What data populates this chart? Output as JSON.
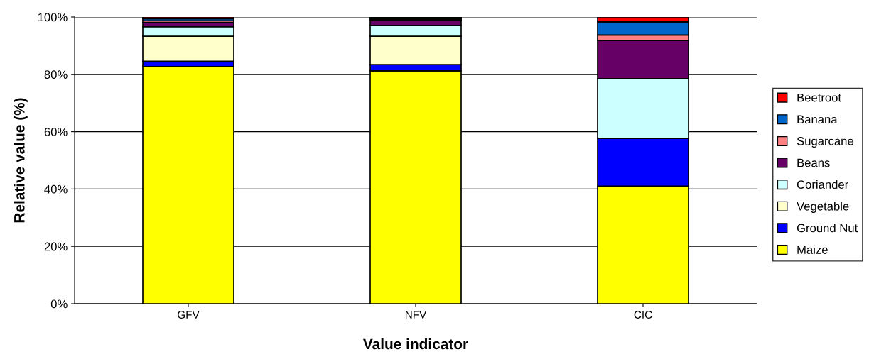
{
  "chart_data": {
    "type": "bar",
    "stacked": true,
    "xlabel": "Value indicator",
    "ylabel": "Relative value (%)",
    "categories": [
      "GFV",
      "NFV",
      "CIC"
    ],
    "series": [
      {
        "name": "Maize",
        "color": "#ffff00",
        "values": [
          82.7,
          81.2,
          41.0
        ]
      },
      {
        "name": "Ground Nut",
        "color": "#0000ff",
        "values": [
          1.9,
          2.2,
          16.7
        ]
      },
      {
        "name": "Vegetable",
        "color": "#ffffcc",
        "values": [
          8.7,
          9.9,
          0
        ]
      },
      {
        "name": "Coriander",
        "color": "#ccffff",
        "values": [
          3.3,
          3.8,
          20.8
        ]
      },
      {
        "name": "Beans",
        "color": "#660066",
        "values": [
          1.5,
          1.7,
          13.3
        ]
      },
      {
        "name": "Sugarcane",
        "color": "#ff8080",
        "values": [
          0.6,
          0.4,
          1.9
        ]
      },
      {
        "name": "Banana",
        "color": "#0066cc",
        "values": [
          0.7,
          0.4,
          4.6
        ]
      },
      {
        "name": "Beetroot",
        "color": "#ff0000",
        "values": [
          0.6,
          0.4,
          1.7
        ]
      }
    ],
    "ylim": [
      0,
      100
    ],
    "yticks": [
      {
        "value": 0,
        "label": "0%"
      },
      {
        "value": 20,
        "label": "20%"
      },
      {
        "value": 40,
        "label": "40%"
      },
      {
        "value": 60,
        "label": "60%"
      },
      {
        "value": 80,
        "label": "80%"
      },
      {
        "value": 100,
        "label": "100%"
      }
    ],
    "grid": "y",
    "legend": "right"
  }
}
